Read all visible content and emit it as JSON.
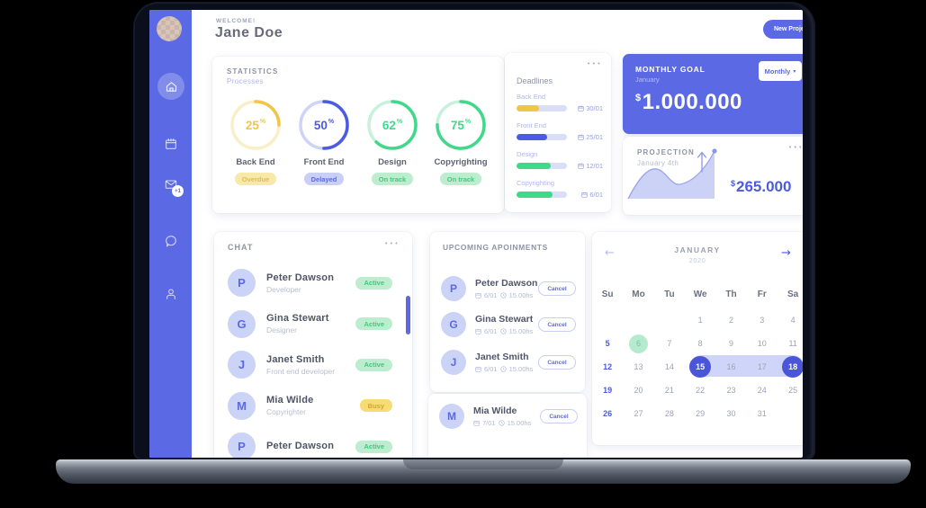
{
  "header": {
    "welcome": "WELCOME!",
    "user_name": "Jane Doe",
    "new_project_label": "New Project"
  },
  "sidebar": {
    "mail_badge": "+1"
  },
  "icons": {
    "more_options": "•••",
    "dropdown": "▾",
    "arrow_left": "←",
    "arrow_right": "→"
  },
  "statistics": {
    "title": "STATISTICS",
    "subtitle": "Processes",
    "percent_suffix": "%",
    "items": [
      {
        "percent": 25,
        "label": "Back End",
        "status": "Overdue",
        "color": "#F0C64A"
      },
      {
        "percent": 50,
        "label": "Front End",
        "status": "Delayed",
        "color": "#4C5BE0"
      },
      {
        "percent": 62,
        "label": "Design",
        "status": "On track",
        "color": "#42D88B"
      },
      {
        "percent": 75,
        "label": "Copyrighting",
        "status": "On track",
        "color": "#42D88B"
      }
    ]
  },
  "deadlines": {
    "title": "Deadlines",
    "items": [
      {
        "label": "Back End",
        "date": "30/01",
        "progress": 45,
        "color": "#F0C64A"
      },
      {
        "label": "Front End",
        "date": "25/01",
        "progress": 60,
        "color": "#4C5BE0"
      },
      {
        "label": "Design",
        "date": "12/01",
        "progress": 68,
        "color": "#42D88B"
      },
      {
        "label": "Copyrighting",
        "date": "6/01",
        "progress": 72,
        "color": "#42D88B"
      }
    ]
  },
  "monthly_goal": {
    "title": "MONTHLY GOAL",
    "subtitle": "January",
    "currency": "$",
    "amount": "1.000.000",
    "period": "Monthly",
    "bg_color": "#5B6AE4"
  },
  "projection": {
    "title": "PROJECTION",
    "subtitle": "January 4th",
    "currency": "$",
    "amount": "265.000"
  },
  "chat": {
    "title": "CHAT",
    "members": [
      {
        "initial": "P",
        "name": "Peter Dawson",
        "role": "Developer",
        "status": "Active"
      },
      {
        "initial": "G",
        "name": "Gina Stewart",
        "role": "Designer",
        "status": "Active"
      },
      {
        "initial": "J",
        "name": "Janet Smith",
        "role": "Front end developer",
        "status": "Active"
      },
      {
        "initial": "M",
        "name": "Mia Wilde",
        "role": "Copyrighter",
        "status": "Busy"
      },
      {
        "initial": "P",
        "name": "Peter Dawson",
        "role": "",
        "status": "Active"
      }
    ]
  },
  "appointments": {
    "title": "UPCOMING APOINMENTS",
    "cancel_label": "Cancel",
    "items": [
      {
        "initial": "P",
        "name": "Peter Dawson",
        "date": "6/01",
        "time": "15.00hs"
      },
      {
        "initial": "G",
        "name": "Gina Stewart",
        "date": "6/01",
        "time": "15.00hs"
      },
      {
        "initial": "J",
        "name": "Janet Smith",
        "date": "6/01",
        "time": "15.00hs"
      },
      {
        "initial": "M",
        "name": "Mia Wilde",
        "date": "7/01",
        "time": "15.00hs"
      }
    ]
  },
  "calendar": {
    "month": "JANUARY",
    "year": "2020",
    "day_headers": [
      "Su",
      "Mo",
      "Tu",
      "We",
      "Th",
      "Fr",
      "Sa"
    ],
    "days": [
      "",
      "",
      "",
      "1",
      "2",
      "3",
      "4",
      "5",
      "6",
      "7",
      "8",
      "9",
      "10",
      "11",
      "12",
      "13",
      "14",
      "15",
      "16",
      "17",
      "18",
      "19",
      "20",
      "21",
      "22",
      "23",
      "24",
      "25",
      "26",
      "27",
      "28",
      "29",
      "30",
      "31",
      ""
    ],
    "highlighted_day": "6",
    "range_start": "15",
    "range_end": "18"
  },
  "colors": {
    "sidebar": "#5B6AE4",
    "accent": "#5B6AE4",
    "selected_day": "#4B55D8",
    "range_band": "#CED5F8",
    "green_day": "#B6EACE",
    "badge_active_bg": "#BCEDCF",
    "badge_active_text": "#3FC97E",
    "badge_busy_bg": "#F6DC72",
    "badge_busy_text": "#D9A52E",
    "badge_overdue_bg": "#F8E9A9",
    "badge_delayed_bg": "#C9CFF5"
  }
}
